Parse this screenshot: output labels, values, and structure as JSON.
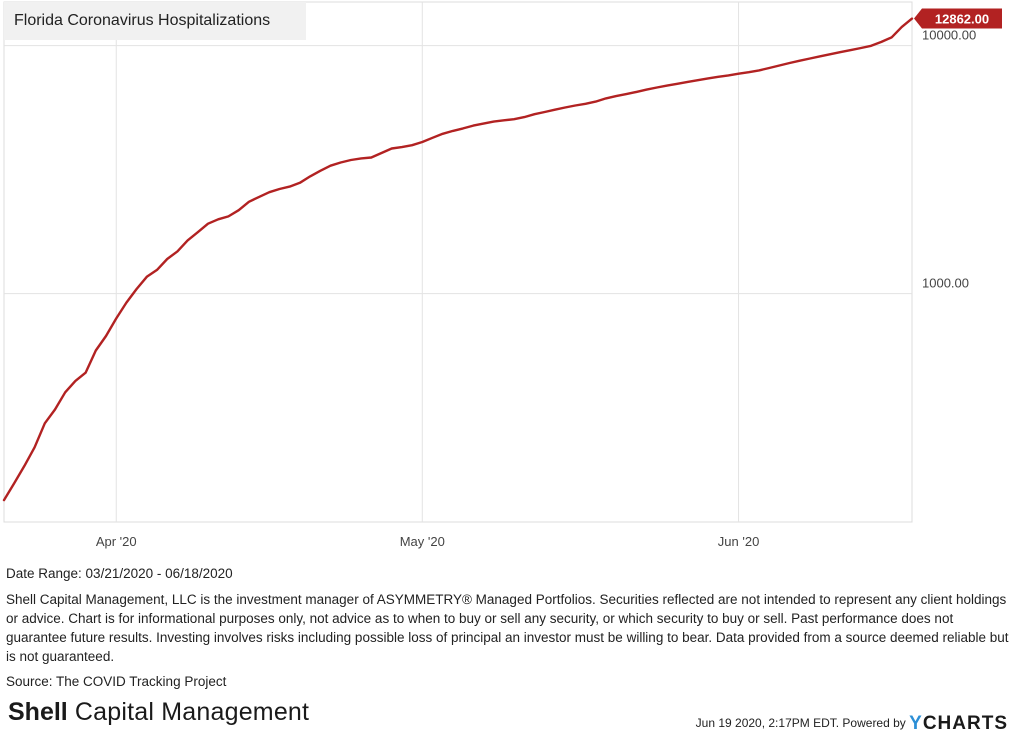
{
  "chart_data": {
    "type": "line",
    "title": "Florida Coronavirus Hospitalizations",
    "y_scale": "log",
    "ylim": [
      120,
      15000
    ],
    "xlim": [
      "2020-03-21",
      "2020-06-18"
    ],
    "grid": true,
    "x_ticks": [
      {
        "date": "2020-04-01",
        "label": "Apr '20"
      },
      {
        "date": "2020-05-01",
        "label": "May '20"
      },
      {
        "date": "2020-06-01",
        "label": "Jun '20"
      }
    ],
    "y_ticks": [
      {
        "value": 1000,
        "label": "1000.00"
      },
      {
        "value": 10000,
        "label": "10000.00"
      }
    ],
    "series": [
      {
        "color": "#b22222",
        "last_value_label": "12862.00",
        "points": [
          [
            "2020-03-21",
            147
          ],
          [
            "2020-03-22",
            172
          ],
          [
            "2020-03-23",
            202
          ],
          [
            "2020-03-24",
            240
          ],
          [
            "2020-03-25",
            300
          ],
          [
            "2020-03-26",
            341
          ],
          [
            "2020-03-27",
            400
          ],
          [
            "2020-03-28",
            445
          ],
          [
            "2020-03-29",
            480
          ],
          [
            "2020-03-30",
            590
          ],
          [
            "2020-03-31",
            675
          ],
          [
            "2020-04-01",
            794
          ],
          [
            "2020-04-02",
            920
          ],
          [
            "2020-04-03",
            1044
          ],
          [
            "2020-04-04",
            1169
          ],
          [
            "2020-04-05",
            1247
          ],
          [
            "2020-04-06",
            1380
          ],
          [
            "2020-04-07",
            1480
          ],
          [
            "2020-04-08",
            1639
          ],
          [
            "2020-04-09",
            1770
          ],
          [
            "2020-04-10",
            1914
          ],
          [
            "2020-04-11",
            1995
          ],
          [
            "2020-04-12",
            2048
          ],
          [
            "2020-04-13",
            2170
          ],
          [
            "2020-04-14",
            2346
          ],
          [
            "2020-04-15",
            2455
          ],
          [
            "2020-04-16",
            2566
          ],
          [
            "2020-04-17",
            2643
          ],
          [
            "2020-04-18",
            2701
          ],
          [
            "2020-04-19",
            2800
          ],
          [
            "2020-04-20",
            2970
          ],
          [
            "2020-04-21",
            3130
          ],
          [
            "2020-04-22",
            3280
          ],
          [
            "2020-04-23",
            3380
          ],
          [
            "2020-04-24",
            3460
          ],
          [
            "2020-04-25",
            3510
          ],
          [
            "2020-04-26",
            3540
          ],
          [
            "2020-04-27",
            3690
          ],
          [
            "2020-04-28",
            3850
          ],
          [
            "2020-04-29",
            3900
          ],
          [
            "2020-04-30",
            3970
          ],
          [
            "2020-05-01",
            4090
          ],
          [
            "2020-05-02",
            4250
          ],
          [
            "2020-05-03",
            4410
          ],
          [
            "2020-05-04",
            4530
          ],
          [
            "2020-05-05",
            4640
          ],
          [
            "2020-05-06",
            4760
          ],
          [
            "2020-05-07",
            4850
          ],
          [
            "2020-05-08",
            4940
          ],
          [
            "2020-05-09",
            5000
          ],
          [
            "2020-05-10",
            5050
          ],
          [
            "2020-05-11",
            5150
          ],
          [
            "2020-05-12",
            5290
          ],
          [
            "2020-05-13",
            5400
          ],
          [
            "2020-05-14",
            5520
          ],
          [
            "2020-05-15",
            5630
          ],
          [
            "2020-05-16",
            5740
          ],
          [
            "2020-05-17",
            5830
          ],
          [
            "2020-05-18",
            5950
          ],
          [
            "2020-05-19",
            6130
          ],
          [
            "2020-05-20",
            6260
          ],
          [
            "2020-05-21",
            6380
          ],
          [
            "2020-05-22",
            6510
          ],
          [
            "2020-05-23",
            6650
          ],
          [
            "2020-05-24",
            6780
          ],
          [
            "2020-05-25",
            6900
          ],
          [
            "2020-05-26",
            7020
          ],
          [
            "2020-05-27",
            7140
          ],
          [
            "2020-05-28",
            7260
          ],
          [
            "2020-05-29",
            7380
          ],
          [
            "2020-05-30",
            7490
          ],
          [
            "2020-05-31",
            7590
          ],
          [
            "2020-06-01",
            7710
          ],
          [
            "2020-06-02",
            7820
          ],
          [
            "2020-06-03",
            7950
          ],
          [
            "2020-06-04",
            8130
          ],
          [
            "2020-06-05",
            8320
          ],
          [
            "2020-06-06",
            8510
          ],
          [
            "2020-06-07",
            8700
          ],
          [
            "2020-06-08",
            8880
          ],
          [
            "2020-06-09",
            9060
          ],
          [
            "2020-06-10",
            9240
          ],
          [
            "2020-06-11",
            9420
          ],
          [
            "2020-06-12",
            9600
          ],
          [
            "2020-06-13",
            9790
          ],
          [
            "2020-06-14",
            9990
          ],
          [
            "2020-06-15",
            10360
          ],
          [
            "2020-06-16",
            10800
          ],
          [
            "2020-06-17",
            11900
          ],
          [
            "2020-06-18",
            12862
          ]
        ]
      }
    ]
  },
  "footer": {
    "date_range": "Date Range: 03/21/2020 - 06/18/2020",
    "disclaimer": "Shell Capital Management, LLC is the investment manager of ASYMMETRY® Managed Portfolios. Securities reflected are not intended to represent any client holdings or advice. Chart is for informational purposes only, not advice as to when to buy or sell any security, or which security to buy or sell. Past performance does not guarantee future results. Investing involves risks including possible loss of principal an investor must be willing to bear. Data provided from a source deemed reliable but is not guaranteed.",
    "source": "Source: The COVID Tracking Project",
    "brand_bold": "Shell",
    "brand_rest": " Capital Management",
    "timestamp": "Jun 19 2020, 2:17PM EDT.",
    "powered_by": "Powered by",
    "ycharts_y": "Y",
    "ycharts_rest": "CHARTS"
  }
}
